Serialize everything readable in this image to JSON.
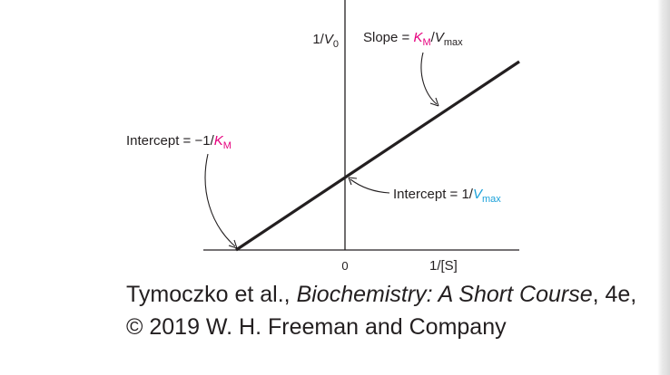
{
  "chart_data": {
    "type": "line",
    "title": "",
    "xlabel": "1/[S]",
    "ylabel": "1/V0",
    "x_tick_labels": [
      "0"
    ],
    "series": [
      {
        "x": [
          -1,
          1.6
        ],
        "y": [
          0,
          2.6
        ]
      }
    ],
    "x_range": [
      -1.3,
      1.6
    ],
    "y_range": [
      0,
      3.5
    ],
    "grid": false,
    "legend": "none",
    "line_color": "#231f20",
    "annotations": {
      "slope": {
        "prefix": "Slope = ",
        "km": "K",
        "km_sub": "M",
        "slash": "/",
        "v": "V",
        "v_sub": "max",
        "color": "#e6007e"
      },
      "x_intercept": {
        "prefix": "Intercept = −1/",
        "km": "K",
        "km_sub": "M",
        "color": "#e6007e"
      },
      "y_intercept": {
        "prefix": "Intercept = 1/",
        "v": "V",
        "v_sub": "max",
        "color": "#1ba1d9"
      }
    }
  },
  "ylabel_parts": {
    "prefix": "1/",
    "v": "V",
    "sub": "0"
  },
  "caption": {
    "part1": "Tymoczko et al., ",
    "title": "Biochemistry: A Short Course",
    "part2": ", 4e, © 2019 W. H. Freeman and Company"
  }
}
